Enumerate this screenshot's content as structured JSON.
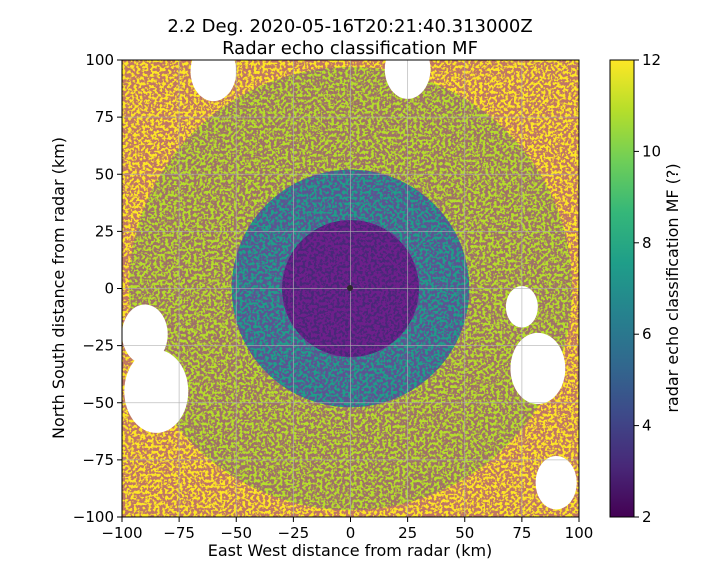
{
  "chart_data": {
    "type": "heatmap",
    "title_line1": "2.2 Deg. 2020-05-16T20:21:40.313000Z",
    "title_line2": "Radar echo classification MF",
    "xlabel": "East West distance from radar (km)",
    "ylabel": "North South distance from radar (km)",
    "xlim": [
      -100,
      100
    ],
    "ylim": [
      -100,
      100
    ],
    "xticks": [
      -100,
      -75,
      -50,
      -25,
      0,
      25,
      50,
      75,
      100
    ],
    "yticks": [
      -100,
      -75,
      -50,
      -25,
      0,
      25,
      50,
      75,
      100
    ],
    "grid": true,
    "radar_center": [
      0,
      0
    ],
    "range_rings_km": [
      {
        "outer": 30,
        "value": 3
      },
      {
        "outer": 42,
        "value": 7
      },
      {
        "outer": 52,
        "value": 8
      },
      {
        "outer": 97,
        "value": 11
      },
      {
        "outer": 100,
        "value": 12
      }
    ],
    "no_data_regions": [
      {
        "x": -85,
        "y": -45,
        "r": 14
      },
      {
        "x": -90,
        "y": -20,
        "r": 10
      },
      {
        "x": 82,
        "y": -35,
        "r": 12
      },
      {
        "x": 75,
        "y": -8,
        "r": 7
      },
      {
        "x": 90,
        "y": -85,
        "r": 9
      },
      {
        "x": -60,
        "y": 95,
        "r": 10
      },
      {
        "x": 25,
        "y": 96,
        "r": 10
      }
    ],
    "colorbar": {
      "label": "radar echo classification MF (?)",
      "min": 2,
      "max": 12,
      "ticks": [
        2,
        4,
        6,
        8,
        10,
        12
      ],
      "colormap": "viridis",
      "colormap_stops": [
        "#440154",
        "#482878",
        "#3e4989",
        "#31688e",
        "#26828e",
        "#1f9e89",
        "#35b779",
        "#6ece58",
        "#b5de2b",
        "#fde725"
      ]
    }
  }
}
